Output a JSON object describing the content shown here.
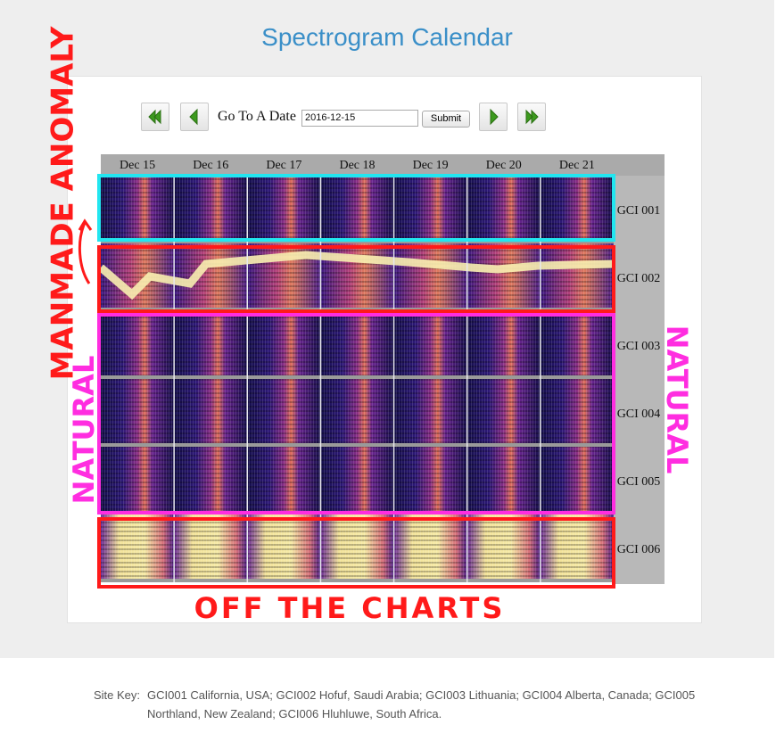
{
  "header": {
    "title": "Spectrogram Calendar"
  },
  "navigation": {
    "date_label": "Go To A Date",
    "date_value": "2016-12-15",
    "submit": "Submit"
  },
  "calendar": {
    "days": [
      "Dec 15",
      "Dec 16",
      "Dec 17",
      "Dec 18",
      "Dec 19",
      "Dec 20",
      "Dec 21"
    ],
    "stations": [
      "GCI 001",
      "GCI 002",
      "GCI 003",
      "GCI 004",
      "GCI 005",
      "GCI 006"
    ]
  },
  "annotations": {
    "manmade": "MANMADE ANOMALY",
    "natural_left": "NATURAL",
    "natural_right": "NATURAL",
    "off_charts": "OFF THE CHARTS"
  },
  "site_key": {
    "label": "Site Key:",
    "text": "GCI001 California, USA; GCI002 Hofuf, Saudi Arabia; GCI003 Lithuania; GCI004 Alberta, Canada; GCI005 Northland, New Zealand; GCI006 Hluhluwe, South Africa."
  }
}
